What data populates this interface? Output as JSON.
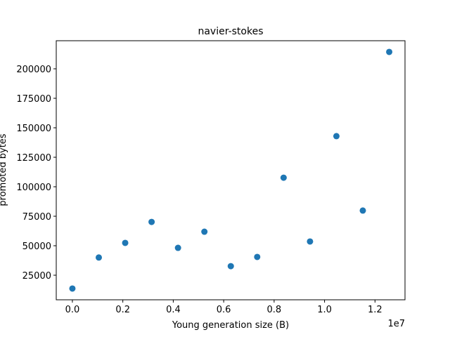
{
  "chart_data": {
    "type": "scatter",
    "title": "navier-stokes",
    "x_label": "Young generation size (B)",
    "y_label": "promoted bytes",
    "x_offset_label": "1e7",
    "color": "#1f77b4",
    "x": [
      0,
      1047000,
      2094000,
      3141000,
      4188000,
      5235000,
      6282000,
      7329000,
      8376000,
      9423000,
      10470000,
      11517000,
      12564000
    ],
    "values": [
      13700,
      40000,
      52400,
      70200,
      48200,
      61900,
      32700,
      40500,
      107700,
      53600,
      142900,
      79800,
      214300
    ],
    "xlim": [
      -640000,
      13190000
    ],
    "xticks": [
      {
        "value": 0,
        "label": "0.0"
      },
      {
        "value": 2000000,
        "label": "0.2"
      },
      {
        "value": 4000000,
        "label": "0.4"
      },
      {
        "value": 6000000,
        "label": "0.6"
      },
      {
        "value": 8000000,
        "label": "0.8"
      },
      {
        "value": 10000000,
        "label": "1.0"
      },
      {
        "value": 12000000,
        "label": "1.2"
      }
    ],
    "ylim": [
      4167,
      223810
    ],
    "yticks": [
      25000,
      50000,
      75000,
      100000,
      125000,
      150000,
      175000,
      200000
    ]
  }
}
